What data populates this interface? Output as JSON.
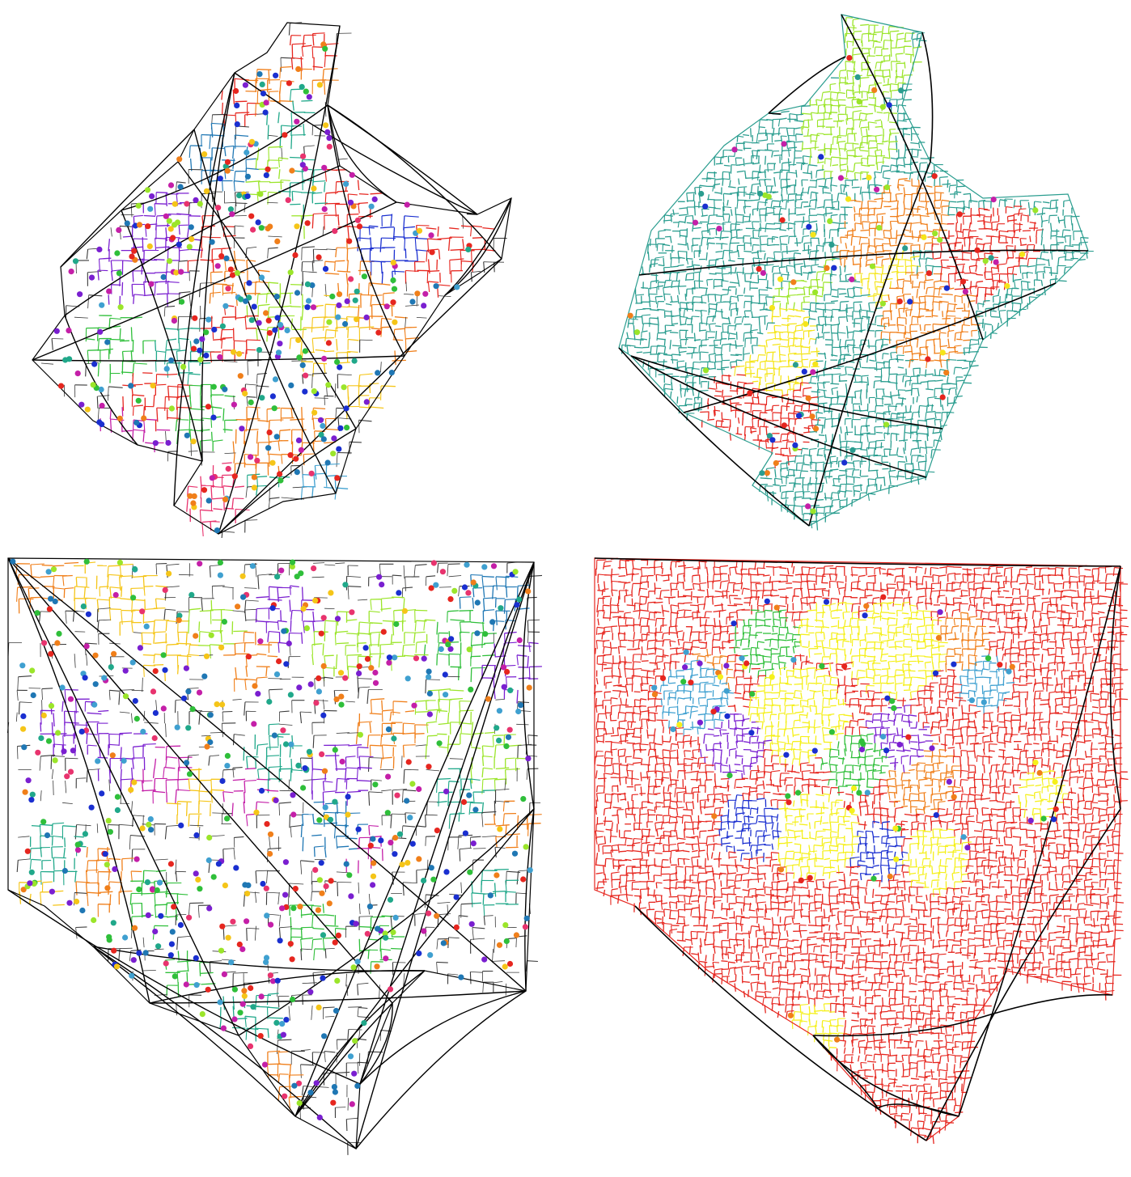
{
  "figure": {
    "panels": [
      {
        "id": "city-a-fine",
        "mode": "many-regions",
        "road_color": "#000000",
        "region_palette": [
          "#e6261f",
          "#f07f1a",
          "#f5c518",
          "#9be52a",
          "#2fbf3a",
          "#20a88a",
          "#1f77b4",
          "#1a2fd0",
          "#7a1fd0",
          "#c41fa8",
          "#e8336e",
          "#3fa0d0"
        ]
      },
      {
        "id": "city-a-coarse",
        "mode": "few-regions",
        "road_color": "#000000",
        "region_palette": [
          "#2a9d8f",
          "#e6261f",
          "#f07f1a",
          "#f5e51a",
          "#9be52a",
          "#1a2fd0",
          "#c41fa8"
        ]
      },
      {
        "id": "city-b-fine",
        "mode": "many-regions",
        "road_color": "#000000",
        "region_palette": [
          "#e6261f",
          "#f07f1a",
          "#f5c518",
          "#9be52a",
          "#2fbf3a",
          "#20a88a",
          "#1f77b4",
          "#1a2fd0",
          "#7a1fd0",
          "#c41fa8",
          "#e8336e",
          "#3fa0d0"
        ]
      },
      {
        "id": "city-b-coarse",
        "mode": "few-regions",
        "road_color": "#000000",
        "region_palette": [
          "#e6261f",
          "#f5f01a",
          "#f07f1a",
          "#2fbf3a",
          "#1a2fd0",
          "#7a1fd0",
          "#3fa0d0"
        ]
      }
    ]
  }
}
